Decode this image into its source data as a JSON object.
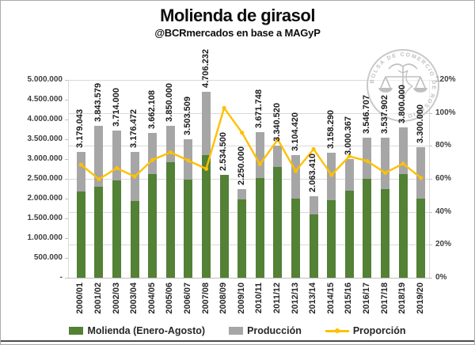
{
  "title": "Molienda de girasol",
  "subtitle": "@BCRmercados en base a MAGyP",
  "watermark": {
    "text": "BOLSA DE COMERCIO DE ROSARIO"
  },
  "colors": {
    "molienda_green": "#538135",
    "produccion_gray": "#a6a6a6",
    "proporcion_line": "#ffc000",
    "gridline": "#d9d9d9",
    "watermark_gray": "#b9b9b9"
  },
  "chart_data": {
    "type": "bar",
    "subtype": "overlapped bars + line on secondary axis",
    "title": "Molienda de girasol",
    "subtitle": "@BCRmercados en base a MAGyP",
    "categories": [
      "2000/01",
      "2001/02",
      "2002/03",
      "2003/04",
      "2004/05",
      "2005/06",
      "2006/07",
      "2007/08",
      "2008/09",
      "2009/10",
      "2010/11",
      "2011/12",
      "2012/13",
      "2013/14",
      "2014/15",
      "2015/16",
      "2016/17",
      "2017/18",
      "2018/19",
      "2019/20"
    ],
    "series": [
      {
        "name": "Molienda (Enero-Agosto)",
        "type": "bar",
        "axis": "left",
        "color": "#538135",
        "values_estimated": [
          2180000,
          2300000,
          2470000,
          1950000,
          2620000,
          2930000,
          2490000,
          3110000,
          2610000,
          1980000,
          2530000,
          2800000,
          2010000,
          1610000,
          1970000,
          2210000,
          2510000,
          2250000,
          2630000,
          2000000
        ]
      },
      {
        "name": "Producción",
        "type": "bar",
        "axis": "left",
        "color": "#a6a6a6",
        "values": [
          3179043,
          3843579,
          3714000,
          3176472,
          3662108,
          3850000,
          3503509,
          4706232,
          2534500,
          2250000,
          3671748,
          3340520,
          3104420,
          2063410,
          3158290,
          3000367,
          3546707,
          3537902,
          3800000,
          3300000
        ],
        "data_labels": [
          "3.179.043",
          "3.843.579",
          "3.714.000",
          "3.176.472",
          "3.662.108",
          "3.850.000",
          "3.503.509",
          "4.706.232",
          "2.534.500",
          "2.250.000",
          "3.671.748",
          "3.340.520",
          "3.104.420",
          "2.063.410",
          "3.158.290",
          "3.000.367",
          "3.546.707",
          "3.537.902",
          "3.800.000",
          "3.300.000"
        ]
      },
      {
        "name": "Proporción",
        "type": "line",
        "axis": "right",
        "color": "#ffc000",
        "values_pct": [
          68.6,
          59.8,
          66.5,
          61.4,
          71.5,
          76.1,
          71.1,
          66.1,
          103.0,
          88.0,
          68.9,
          83.8,
          64.7,
          78.0,
          62.4,
          73.7,
          70.8,
          63.6,
          69.2,
          60.6
        ]
      }
    ],
    "left_axis": {
      "min": 0,
      "max": 5000000,
      "step": 500000,
      "tick_labels": [
        "-",
        "500.000",
        "1.000.000",
        "1.500.000",
        "2.000.000",
        "2.500.000",
        "3.000.000",
        "3.500.000",
        "4.000.000",
        "4.500.000",
        "5.000.000"
      ]
    },
    "right_axis": {
      "min": 0,
      "max": 1.2,
      "step": 0.2,
      "tick_labels": [
        "0%",
        "20%",
        "40%",
        "60%",
        "80%",
        "100%",
        "120%"
      ]
    },
    "grid": "horizontal, every 20% of secondary axis",
    "legend_position": "bottom"
  }
}
